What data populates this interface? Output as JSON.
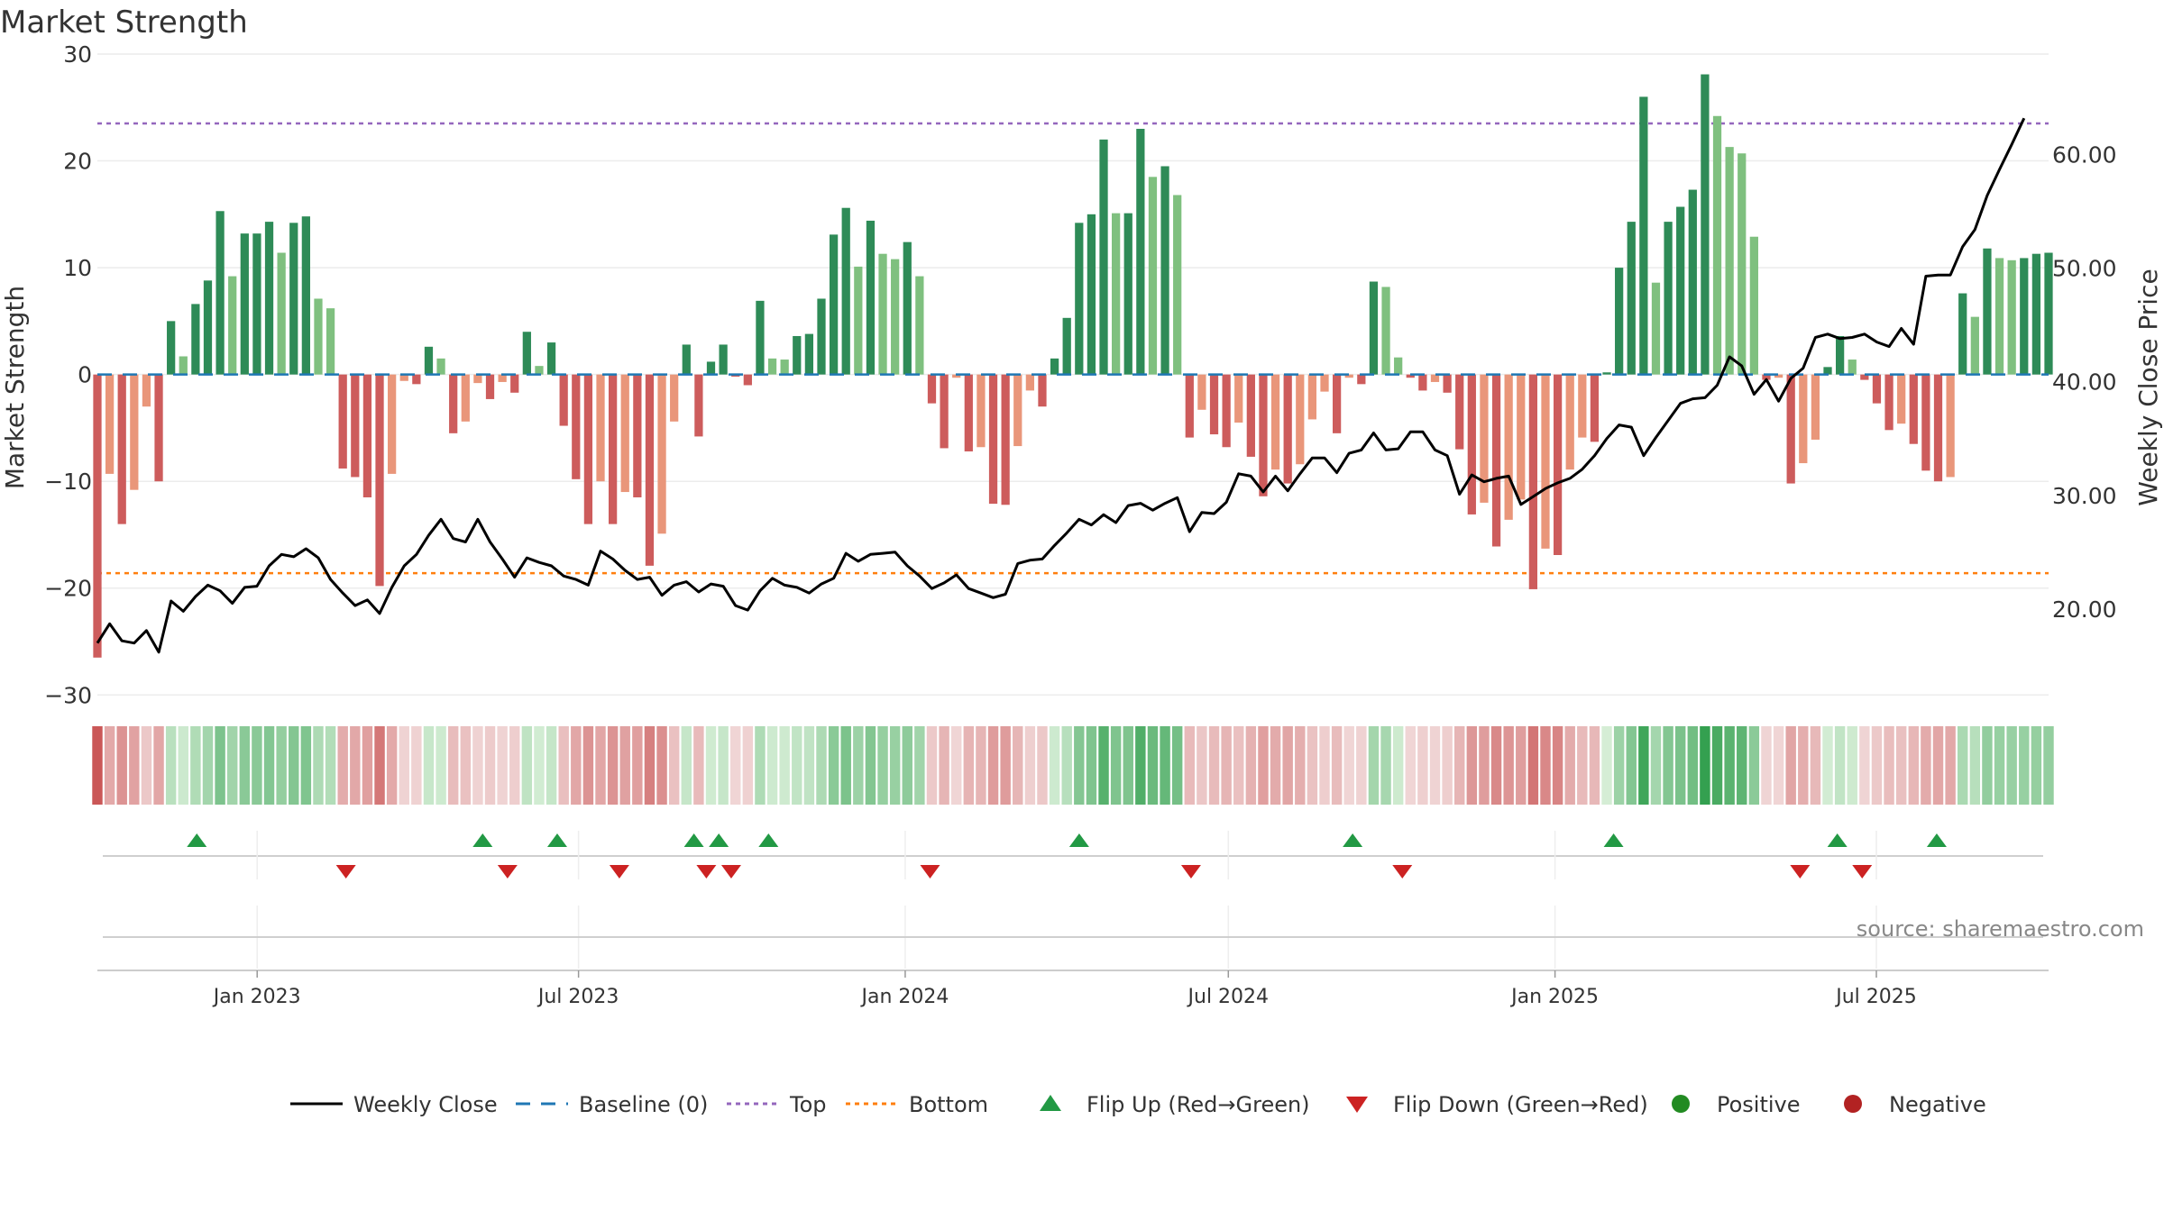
{
  "chart_data": {
    "type": "bar",
    "title": "Market Strength",
    "ylabel": "Market Strength",
    "y2label": "Weekly Close Price",
    "ylim": [
      -32,
      30
    ],
    "y2lim": [
      10.55,
      68.85
    ],
    "yticks": [
      30,
      20,
      10,
      0,
      -10,
      -20,
      -30
    ],
    "yticklabels": [
      "30",
      "20",
      "10",
      "0",
      "−10",
      "−20",
      "−30"
    ],
    "y2ticks": [
      60,
      50,
      40,
      30,
      20
    ],
    "y2ticklabels": [
      "60.00",
      "50.00",
      "40.00",
      "30.00",
      "20.00"
    ],
    "x_start": "2022-10-03",
    "x_end": "2025-10-06",
    "xticks": [
      "2023-01-01",
      "2023-07-01",
      "2024-01-01",
      "2024-07-01",
      "2025-01-01",
      "2025-07-01"
    ],
    "xticklabels": [
      "Jan 2023",
      "Jul 2023",
      "Jan 2024",
      "Jul 2024",
      "Jan 2025",
      "Jul 2025"
    ],
    "top_line": 23.5,
    "bottom_line": -18.6,
    "grid": true,
    "legend_position": "bottom",
    "source": "source: sharemaestro.com",
    "colors": {
      "pos_strong": "#2e8b57",
      "pos_weak": "#7fc07f",
      "neg_strong": "#cd5c5c",
      "neg_weak": "#e9967a",
      "close": "#000000",
      "baseline": "#1f77b4",
      "top": "#9467bd",
      "bottom": "#ff7f0e",
      "flip_up": "#229944",
      "flip_down": "#cc2222",
      "positive_dot": "#228b22",
      "negative_dot": "#b22222"
    },
    "series": [
      {
        "name": "Market Strength",
        "values": [
          -26.5,
          -9.3,
          -14,
          -10.8,
          -3,
          -10,
          5,
          1.7,
          6.6,
          8.8,
          15.3,
          9.2,
          13.2,
          13.2,
          14.3,
          11.4,
          14.2,
          14.8,
          7.1,
          6.2,
          -8.8,
          -9.6,
          -11.5,
          -19.8,
          -9.3,
          -0.6,
          -0.9,
          2.6,
          1.5,
          -5.5,
          -4.4,
          -0.8,
          -2.3,
          -0.7,
          -1.7,
          4,
          0.8,
          3,
          -4.8,
          -9.8,
          -14,
          -10,
          -14,
          -11,
          -11.5,
          -17.9,
          -14.9,
          -4.4,
          2.8,
          -5.8,
          1.2,
          2.8,
          -0.2,
          -1,
          6.9,
          1.5,
          1.4,
          3.6,
          3.8,
          7.1,
          13.1,
          15.6,
          10.1,
          14.4,
          11.3,
          10.8,
          12.4,
          9.2,
          -2.7,
          -6.9,
          -0.3,
          -7.2,
          -6.8,
          -12.1,
          -12.2,
          -6.7,
          -1.5,
          -3,
          1.5,
          5.3,
          14.2,
          15,
          22,
          15.1,
          15.1,
          23,
          18.5,
          19.5,
          16.8,
          -5.9,
          -3.3,
          -5.6,
          -6.8,
          -4.5,
          -7.7,
          -11.4,
          -8.9,
          -10.2,
          -8.4,
          -4.2,
          -1.6,
          -5.5,
          -0.3,
          -0.9,
          8.7,
          8.2,
          1.6,
          -0.3,
          -1.5,
          -0.7,
          -1.7,
          -7,
          -13.1,
          -12,
          -16.1,
          -13.6,
          -11.7,
          -20.1,
          -16.3,
          -16.9,
          -8.9,
          -5.9,
          -6.3,
          0.2,
          10,
          14.3,
          26,
          8.6,
          14.3,
          15.7,
          17.3,
          28.1,
          24.2,
          21.3,
          20.7,
          12.9,
          -0.5,
          -0.3,
          -10.2,
          -8.3,
          -6.1,
          0.7,
          3.6,
          1.4,
          -0.5,
          -2.7,
          -5.2,
          -4.6,
          -6.5,
          -9,
          -10,
          -9.6,
          7.6,
          5.4,
          11.8,
          10.9,
          10.7,
          10.9,
          11.3,
          11.4
        ]
      },
      {
        "name": "Weekly Close",
        "values": [
          17,
          18.7,
          17.2,
          17,
          18.1,
          16.2,
          20.7,
          19.8,
          21.1,
          22.1,
          21.6,
          20.5,
          21.9,
          22,
          23.8,
          24.8,
          24.6,
          25.3,
          24.5,
          22.6,
          21.4,
          20.3,
          20.8,
          19.6,
          21.9,
          23.8,
          24.8,
          26.5,
          27.9,
          26.2,
          25.9,
          27.9,
          25.9,
          24.4,
          22.8,
          24.5,
          24.1,
          23.8,
          22.9,
          22.6,
          22.1,
          25.1,
          24.4,
          23.4,
          22.6,
          22.8,
          21.2,
          22.1,
          22.4,
          21.5,
          22.2,
          22,
          20.3,
          19.9,
          21.6,
          22.7,
          22.1,
          21.9,
          21.4,
          22.2,
          22.7,
          24.9,
          24.2,
          24.8,
          24.9,
          25,
          23.8,
          22.9,
          21.8,
          22.3,
          23,
          21.8,
          21.4,
          21,
          21.3,
          24,
          24.3,
          24.4,
          25.6,
          26.7,
          27.9,
          27.4,
          28.3,
          27.6,
          29.1,
          29.3,
          28.7,
          29.3,
          29.8,
          26.8,
          28.5,
          28.4,
          29.4,
          31.9,
          31.7,
          30.3,
          31.7,
          30.4,
          31.9,
          33.3,
          33.3,
          32,
          33.7,
          34,
          35.5,
          34,
          34.1,
          35.6,
          35.6,
          34,
          33.5,
          30.1,
          31.8,
          31.2,
          31.5,
          31.7,
          29.2,
          29.9,
          30.6,
          31.1,
          31.5,
          32.3,
          33.5,
          35,
          36.2,
          36,
          33.5,
          35.1,
          36.6,
          38.1,
          38.5,
          38.6,
          39.7,
          42.2,
          41.4,
          38.9,
          40.2,
          38.3,
          40.3,
          41.2,
          43.9,
          44.2,
          43.8,
          43.9,
          44.2,
          43.5,
          43.1,
          44.7,
          43.3,
          49.3,
          49.4,
          49.4,
          51.9,
          53.4,
          56.4,
          58.7,
          60.9,
          63.2
        ]
      }
    ],
    "flip_up": [
      "2022-11-28",
      "2023-05-08",
      "2023-06-19",
      "2023-09-04",
      "2023-09-18",
      "2023-10-16",
      "2024-04-08",
      "2024-09-09",
      "2025-02-03",
      "2025-06-09",
      "2025-08-04"
    ],
    "flip_down": [
      "2023-02-20",
      "2023-05-22",
      "2023-07-24",
      "2023-09-11",
      "2023-09-25",
      "2024-01-15",
      "2024-06-10",
      "2024-10-07",
      "2025-05-19",
      "2025-06-23"
    ],
    "legend": [
      {
        "key": "close",
        "label": "Weekly Close"
      },
      {
        "key": "baseline",
        "label": "Baseline (0)"
      },
      {
        "key": "top",
        "label": "Top"
      },
      {
        "key": "bottom",
        "label": "Bottom"
      },
      {
        "key": "flip_up",
        "label": "Flip Up (Red→Green)"
      },
      {
        "key": "flip_down",
        "label": "Flip Down (Green→Red)"
      },
      {
        "key": "positive",
        "label": "Positive"
      },
      {
        "key": "negative",
        "label": "Negative"
      }
    ]
  }
}
